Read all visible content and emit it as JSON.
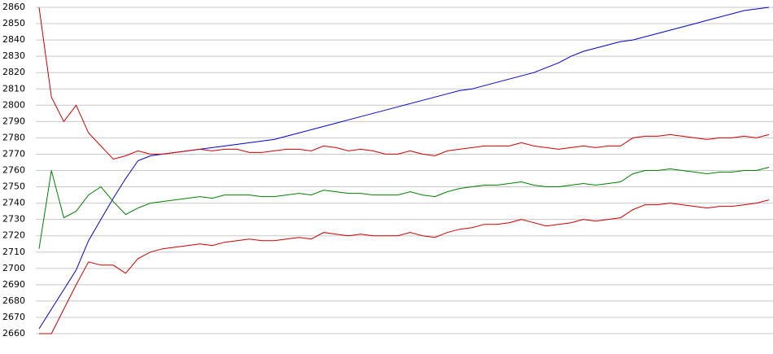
{
  "chart_data": {
    "type": "line",
    "categories": [
      null,
      null,
      null,
      null,
      null,
      null,
      null,
      null,
      null,
      null,
      null,
      null,
      null,
      null,
      null,
      null,
      null,
      null,
      null,
      null,
      null,
      null,
      null,
      null,
      null,
      null,
      null,
      null,
      null,
      null,
      null,
      null,
      null,
      null,
      null,
      null,
      null,
      null,
      null,
      null,
      null,
      null,
      null,
      null,
      null,
      null,
      null,
      null,
      null,
      null,
      null,
      null,
      null,
      null,
      null,
      null,
      null,
      null,
      null,
      null
    ],
    "ylim": [
      2660,
      2860
    ],
    "yticks": [
      2660,
      2670,
      2680,
      2690,
      2700,
      2710,
      2720,
      2730,
      2740,
      2750,
      2760,
      2770,
      2780,
      2790,
      2800,
      2810,
      2820,
      2830,
      2840,
      2850,
      2860
    ],
    "grid": true,
    "series": [
      {
        "color": "#0000cc",
        "values": [
          2663,
          2675,
          2687,
          2699,
          2717,
          2730,
          2743,
          2755,
          2766,
          2769,
          2770,
          2771,
          2772,
          2773,
          2774,
          2775,
          2776,
          2777,
          2778,
          2779,
          2781,
          2783,
          2785,
          2787,
          2789,
          2791,
          2793,
          2795,
          2797,
          2799,
          2801,
          2803,
          2805,
          2807,
          2809,
          2810,
          2812,
          2814,
          2816,
          2818,
          2820,
          2823,
          2826,
          2830,
          2833,
          2835,
          2837,
          2839,
          2840,
          2842,
          2844,
          2846,
          2848,
          2850,
          2852,
          2854,
          2856,
          2858,
          2859,
          2860
        ]
      },
      {
        "color": "#cc0000",
        "values": [
          2860,
          2805,
          2790,
          2800,
          2783,
          2775,
          2767,
          2769,
          2772,
          2770,
          2770,
          2771,
          2772,
          2773,
          2772,
          2773,
          2773,
          2771,
          2771,
          2772,
          2773,
          2773,
          2772,
          2775,
          2774,
          2772,
          2773,
          2772,
          2770,
          2770,
          2772,
          2770,
          2769,
          2772,
          2773,
          2774,
          2775,
          2775,
          2775,
          2777,
          2775,
          2774,
          2773,
          2774,
          2775,
          2774,
          2775,
          2775,
          2780,
          2781,
          2781,
          2782,
          2781,
          2780,
          2779,
          2780,
          2780,
          2781,
          2780,
          2782
        ]
      },
      {
        "color": "#008000",
        "values": [
          2712,
          2760,
          2731,
          2735,
          2745,
          2750,
          2741,
          2733,
          2737,
          2740,
          2741,
          2742,
          2743,
          2744,
          2743,
          2745,
          2745,
          2745,
          2744,
          2744,
          2745,
          2746,
          2745,
          2748,
          2747,
          2746,
          2746,
          2745,
          2745,
          2745,
          2747,
          2745,
          2744,
          2747,
          2749,
          2750,
          2751,
          2751,
          2752,
          2753,
          2751,
          2750,
          2750,
          2751,
          2752,
          2751,
          2752,
          2753,
          2758,
          2760,
          2760,
          2761,
          2760,
          2759,
          2758,
          2759,
          2759,
          2760,
          2760,
          2762
        ]
      },
      {
        "color": "#cc0000",
        "values": [
          2660,
          2660,
          2675,
          2690,
          2704,
          2702,
          2702,
          2697,
          2706,
          2710,
          2712,
          2713,
          2714,
          2715,
          2714,
          2716,
          2717,
          2718,
          2717,
          2717,
          2718,
          2719,
          2718,
          2722,
          2721,
          2720,
          2721,
          2720,
          2720,
          2720,
          2722,
          2720,
          2719,
          2722,
          2724,
          2725,
          2727,
          2727,
          2728,
          2730,
          2728,
          2726,
          2727,
          2728,
          2730,
          2729,
          2730,
          2731,
          2736,
          2739,
          2739,
          2740,
          2739,
          2738,
          2737,
          2738,
          2738,
          2739,
          2740,
          2742
        ]
      }
    ]
  }
}
